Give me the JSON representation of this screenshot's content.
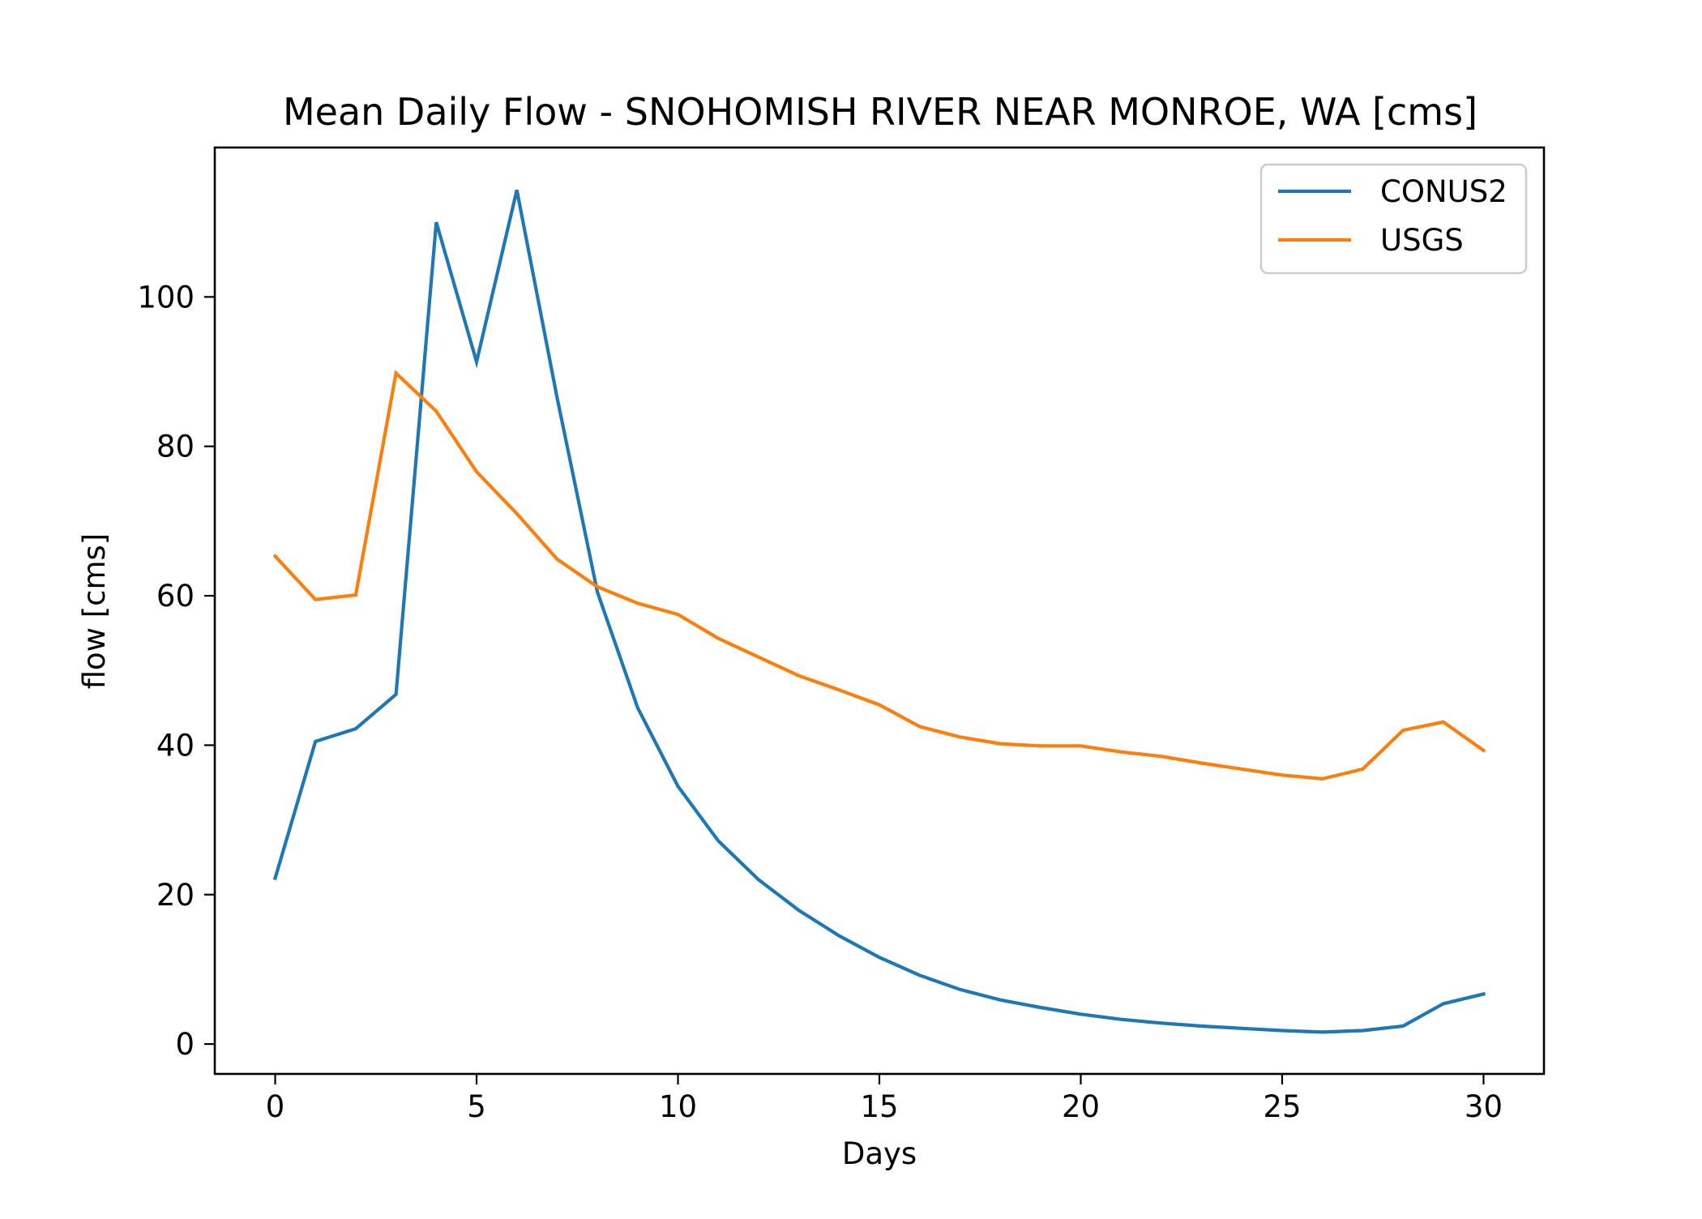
{
  "chart_data": {
    "type": "line",
    "title": "Mean Daily Flow - SNOHOMISH RIVER NEAR MONROE, WA [cms]",
    "xlabel": "Days",
    "ylabel": "flow [cms]",
    "xlim": [
      -1.5,
      31.5
    ],
    "ylim": [
      -4,
      120
    ],
    "xticks": [
      0,
      5,
      10,
      15,
      20,
      25,
      30
    ],
    "yticks": [
      0,
      20,
      40,
      60,
      80,
      100
    ],
    "grid": false,
    "legend_position": "top-right",
    "x": [
      0,
      1,
      2,
      3,
      4,
      5,
      6,
      7,
      8,
      9,
      10,
      11,
      12,
      13,
      14,
      15,
      16,
      17,
      18,
      19,
      20,
      21,
      22,
      23,
      24,
      25,
      26,
      27,
      28,
      29,
      30
    ],
    "series": [
      {
        "name": "CONUS2",
        "color": "#1f77b4",
        "values": [
          22.2,
          40.5,
          42.2,
          46.8,
          110,
          91.3,
          114.3,
          86.5,
          60.5,
          45.0,
          34.5,
          27.2,
          22.0,
          17.9,
          14.5,
          11.6,
          9.2,
          7.3,
          5.9,
          4.9,
          4.0,
          3.3,
          2.8,
          2.4,
          2.1,
          1.8,
          1.6,
          1.8,
          2.4,
          5.4,
          6.7
        ]
      },
      {
        "name": "USGS",
        "color": "#ff7f0e",
        "values": [
          65.3,
          59.5,
          60.1,
          89.8,
          84.7,
          76.6,
          71.0,
          64.9,
          61.2,
          59.0,
          57.5,
          54.3,
          51.8,
          49.3,
          47.4,
          45.4,
          42.5,
          41.1,
          40.2,
          39.9,
          39.9,
          39.1,
          38.5,
          37.6,
          36.8,
          36.0,
          35.5,
          36.8,
          42.0,
          43.1,
          39.3
        ]
      }
    ]
  }
}
